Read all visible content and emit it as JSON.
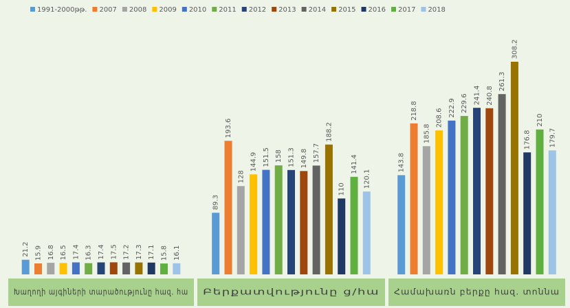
{
  "chart_data": {
    "type": "bar",
    "categories": [
      "Խաղողի այգիների տարածությունը հազ. հա",
      "Բերքատվությունը ց/հա",
      "Համախառն բերքը հազ. տոննա"
    ],
    "series": [
      {
        "name": "1991-2000թթ.",
        "color": "#5b9bd5",
        "values": [
          21.2,
          89.3,
          143.8
        ]
      },
      {
        "name": "2007",
        "color": "#ed7d31",
        "values": [
          15.9,
          193.6,
          218.8
        ]
      },
      {
        "name": "2008",
        "color": "#a5a5a5",
        "values": [
          16.8,
          128,
          185.8
        ]
      },
      {
        "name": "2009",
        "color": "#ffc000",
        "values": [
          16.5,
          144.9,
          208.6
        ]
      },
      {
        "name": "2010",
        "color": "#4472c4",
        "values": [
          17.4,
          151.5,
          222.9
        ]
      },
      {
        "name": "2011",
        "color": "#70ad47",
        "values": [
          16.3,
          158,
          229.6
        ]
      },
      {
        "name": "2012",
        "color": "#264478",
        "values": [
          17.4,
          151.3,
          241.4
        ]
      },
      {
        "name": "2013",
        "color": "#9e480e",
        "values": [
          17.5,
          149.8,
          240.8
        ]
      },
      {
        "name": "2014",
        "color": "#636363",
        "values": [
          17.2,
          157.7,
          261.3
        ]
      },
      {
        "name": "2015",
        "color": "#997300",
        "values": [
          17.3,
          188.2,
          308.2
        ]
      },
      {
        "name": "2016",
        "color": "#1f3864",
        "values": [
          17.1,
          110,
          176.8
        ]
      },
      {
        "name": "2017",
        "color": "#5fb040",
        "values": [
          15.8,
          141.4,
          210
        ]
      },
      {
        "name": "2018",
        "color": "#9dc3e6",
        "values": [
          16.1,
          120.1,
          179.7
        ]
      }
    ]
  }
}
